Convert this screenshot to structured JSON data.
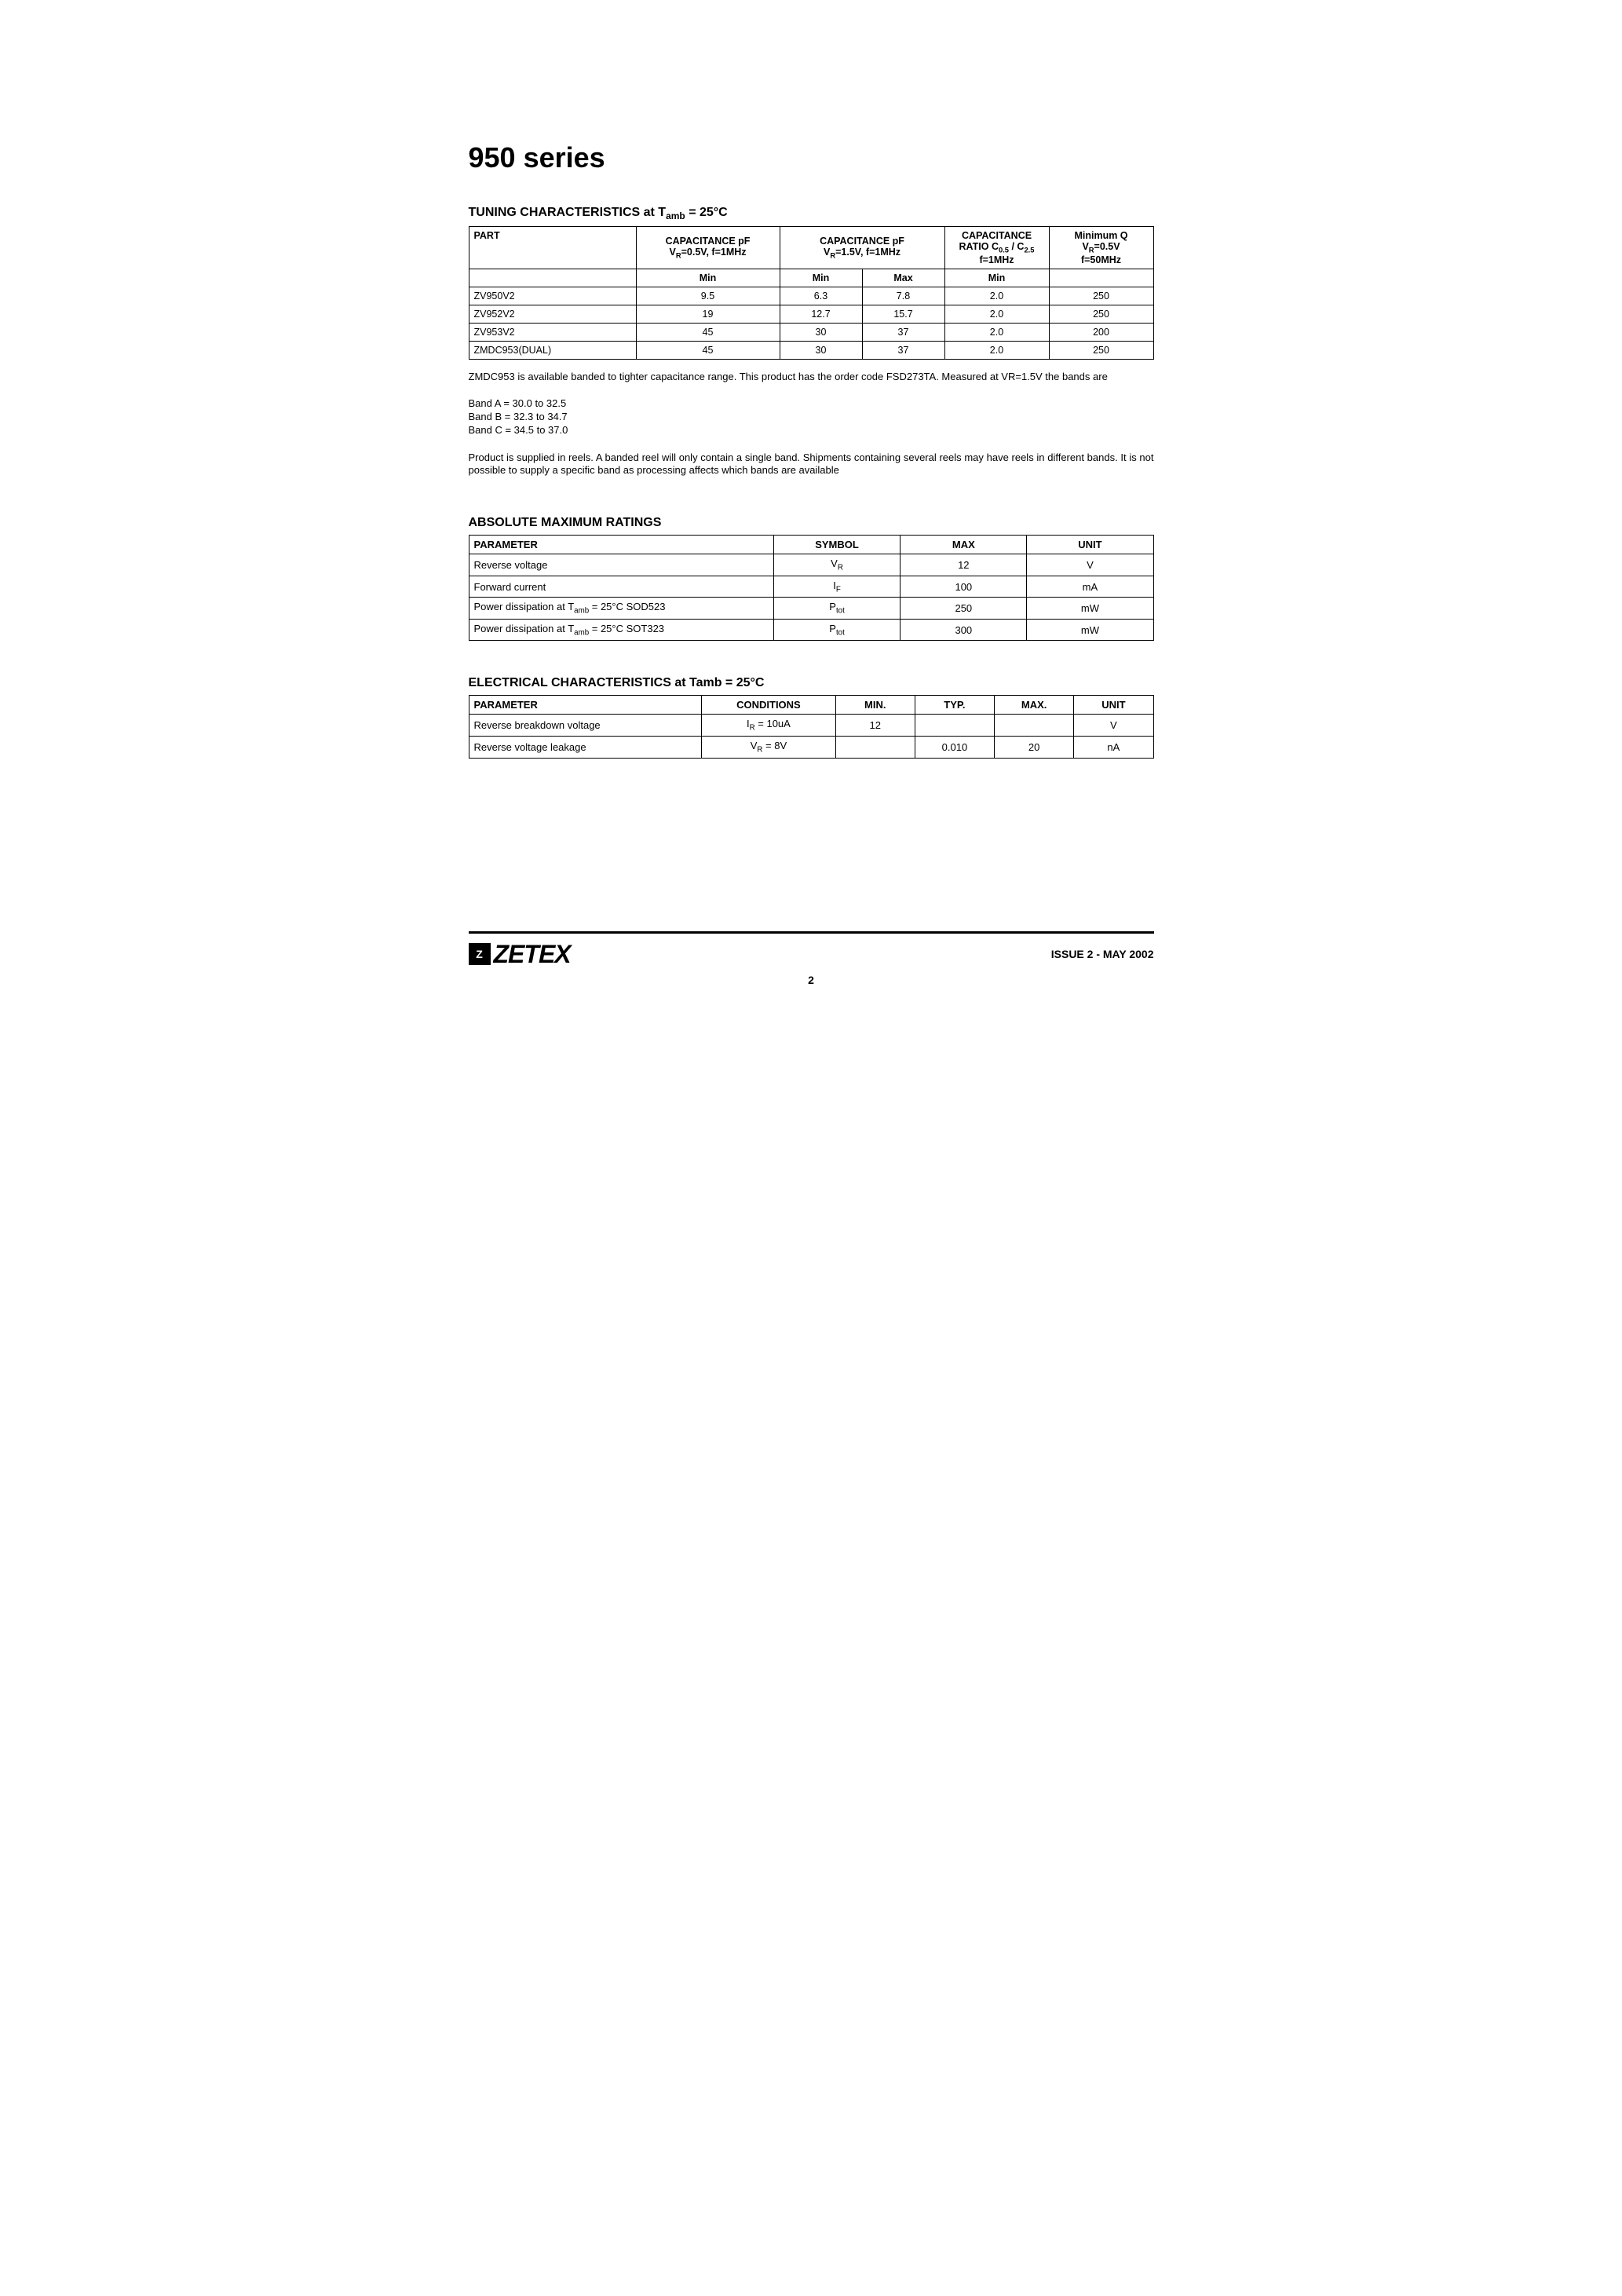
{
  "title": "950 series",
  "tuning": {
    "heading_prefix": "TUNING CHARACTERISTICS at T",
    "heading_sub": "amb",
    "heading_suffix": " = 25°C",
    "headers": {
      "part": "PART",
      "cap1_line1": "CAPACITANCE pF",
      "cap1_line2_pre": "V",
      "cap1_line2_sub": "R",
      "cap1_line2_post": "=0.5V,  f=1MHz",
      "cap2_line1": "CAPACITANCE pF",
      "cap2_line2_pre": "V",
      "cap2_line2_sub": "R",
      "cap2_line2_post": "=1.5V,  f=1MHz",
      "ratio_line1": "CAPACITANCE",
      "ratio_line2_pre": "RATIO C",
      "ratio_line2_sub1": "0.5",
      "ratio_line2_mid": " / C",
      "ratio_line2_sub2": "2.5",
      "ratio_line3": "f=1MHz",
      "q_line1": "Minimum Q",
      "q_line2_pre": "V",
      "q_line2_sub": "R",
      "q_line2_post": "=0.5V",
      "q_line3": "f=50MHz",
      "sub_blank": "",
      "sub_min": "Min",
      "sub_min2": "Min",
      "sub_max": "Max",
      "sub_min3": "Min",
      "sub_blank2": ""
    },
    "rows": [
      {
        "part": "ZV950V2",
        "c1min": "9.5",
        "c2min": "6.3",
        "c2max": "7.8",
        "ratio": "2.0",
        "q": "250"
      },
      {
        "part": "ZV952V2",
        "c1min": "19",
        "c2min": "12.7",
        "c2max": "15.7",
        "ratio": "2.0",
        "q": "250"
      },
      {
        "part": "ZV953V2",
        "c1min": "45",
        "c2min": "30",
        "c2max": "37",
        "ratio": "2.0",
        "q": "200"
      },
      {
        "part": "ZMDC953(DUAL)",
        "c1min": "45",
        "c2min": "30",
        "c2max": "37",
        "ratio": "2.0",
        "q": "250"
      }
    ]
  },
  "note1": "ZMDC953 is available banded to tighter capacitance range.  This product has the order code FSD273TA. Measured at VR=1.5V  the bands are",
  "bands": [
    "Band A = 30.0 to 32.5",
    "Band B = 32.3 to 34.7",
    "Band C = 34.5 to 37.0"
  ],
  "note2": "Product is supplied in reels.  A banded reel will only contain a single band.  Shipments containing several reels may have reels in different bands. It is not possible to supply a specific band as processing affects which bands are available",
  "amr": {
    "heading": "ABSOLUTE MAXIMUM RATINGS",
    "headers": {
      "p": "PARAMETER",
      "s": "SYMBOL",
      "m": "MAX",
      "u": "UNIT"
    },
    "rows": [
      {
        "p": "Reverse voltage",
        "sym_pre": "V",
        "sym_sub": "R",
        "max": "12",
        "unit": "V"
      },
      {
        "p": "Forward current",
        "sym_pre": "I",
        "sym_sub": "F",
        "max": "100",
        "unit": "mA"
      },
      {
        "p_pre": "Power dissipation at T",
        "p_sub": "amb",
        "p_post": " = 25°C SOD523",
        "sym_pre": "P",
        "sym_sub": "tot",
        "max": "250",
        "unit": "mW"
      },
      {
        "p_pre": "Power dissipation at T",
        "p_sub": "amb",
        "p_post": " = 25°C SOT323",
        "sym_pre": "P",
        "sym_sub": "tot",
        "max": "300",
        "unit": "mW"
      }
    ]
  },
  "elec": {
    "heading": "ELECTRICAL CHARACTERISTICS at Tamb = 25°C",
    "headers": {
      "p": "PARAMETER",
      "c": "CONDITIONS",
      "min": "MIN.",
      "typ": "TYP.",
      "max": "MAX.",
      "u": "UNIT"
    },
    "rows": [
      {
        "p": "Reverse breakdown voltage",
        "c_pre": "I",
        "c_sub": "R",
        "c_post": " = 10uA",
        "min": "12",
        "typ": "",
        "max": "",
        "unit": "V"
      },
      {
        "p": "Reverse voltage leakage",
        "c_pre": "V",
        "c_sub": "R",
        "c_post": " = 8V",
        "min": "",
        "typ": "0.010",
        "max": "20",
        "unit": "nA"
      }
    ]
  },
  "footer": {
    "logo_text": "ZETEX",
    "logo_glyph": "Z",
    "issue": "ISSUE 2 - MAY 2002",
    "page": "2"
  }
}
